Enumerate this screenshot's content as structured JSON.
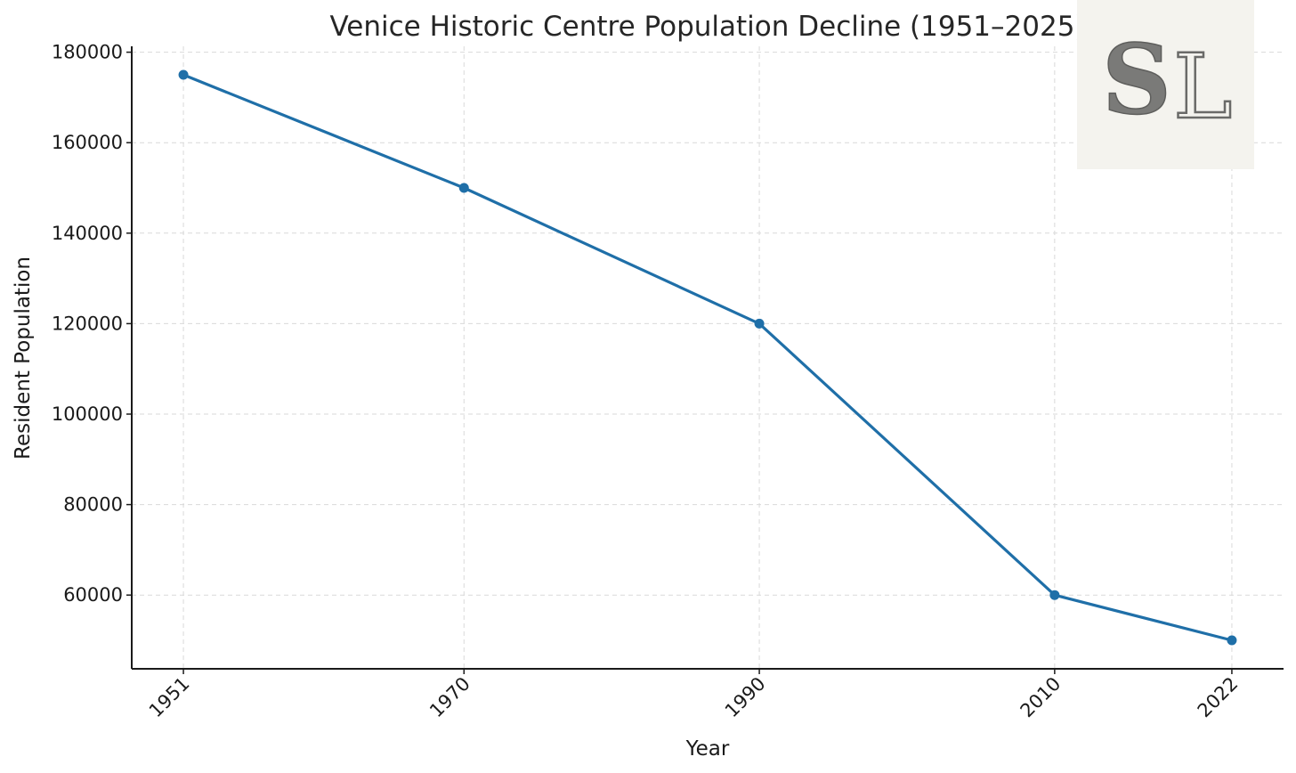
{
  "chart_data": {
    "type": "line",
    "title": "Venice Historic Centre Population Decline (1951–2025)",
    "xlabel": "Year",
    "ylabel": "Resident Population",
    "x": [
      1951,
      1970,
      1990,
      2010,
      2022
    ],
    "x_tick_labels": [
      "1951",
      "1970",
      "1990",
      "2010",
      "2022"
    ],
    "series": [
      {
        "values": [
          175000,
          150000,
          120000,
          60000,
          50000
        ],
        "color": "#1f6fa8"
      }
    ],
    "y_ticks": [
      60000,
      80000,
      100000,
      120000,
      140000,
      160000,
      180000
    ],
    "y_tick_labels": [
      "60000",
      "80000",
      "100000",
      "120000",
      "140000",
      "160000",
      "180000"
    ],
    "xlim": [
      1947.5,
      2025.5
    ],
    "ylim": [
      43700,
      181300
    ],
    "grid": true,
    "x_tick_rotation": -45,
    "marker": "circle"
  },
  "logo": {
    "letters": "SL",
    "description_icon": "monogram-logo"
  }
}
